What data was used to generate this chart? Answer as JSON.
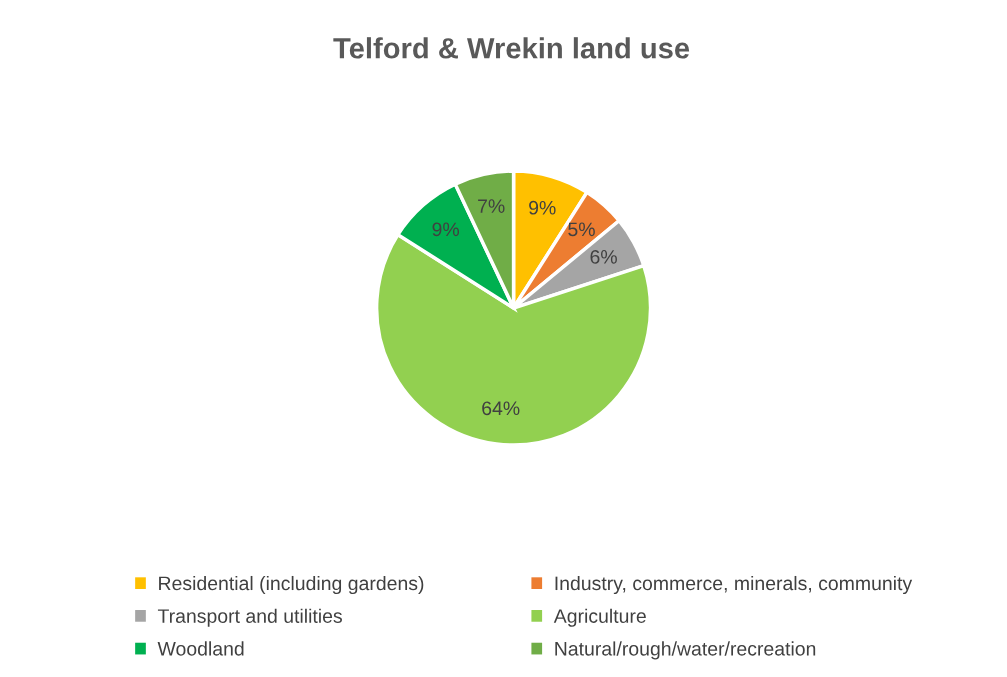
{
  "chart_data": {
    "type": "pie",
    "title": "Telford & Wrekin land use",
    "categories": [
      "Residential (including gardens)",
      "Industry, commerce, minerals, community",
      "Transport and utilities",
      "Agriculture",
      "Woodland",
      "Natural/rough/water/recreation"
    ],
    "values": [
      9,
      5,
      6,
      64,
      9,
      7
    ],
    "value_labels": [
      "9%",
      "5%",
      "6%",
      "64%",
      "9%",
      "7%"
    ],
    "colors": [
      "#ffc000",
      "#ed7d31",
      "#a5a5a5",
      "#92d050",
      "#00b050",
      "#70ad47"
    ],
    "legend": "bottom"
  }
}
